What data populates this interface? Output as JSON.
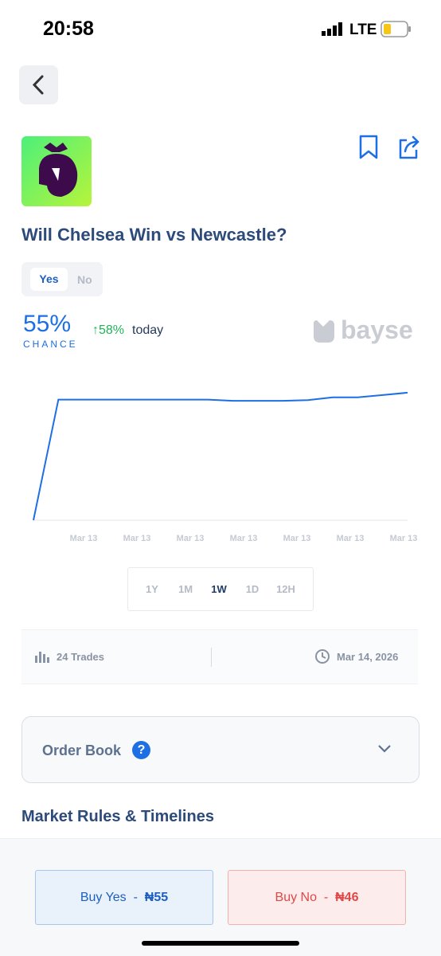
{
  "status_bar": {
    "time": "20:58",
    "network": "LTE"
  },
  "market": {
    "title": "Will Chelsea Win vs Newcastle?",
    "tabs": [
      "Yes",
      "No"
    ],
    "chance": "55%",
    "chance_label": "CHANCE",
    "change": "↑58%",
    "change_suffix": "today",
    "brand": "bayse"
  },
  "chart_data": {
    "type": "line",
    "x_labels": [
      "Mar 13",
      "Mar 13",
      "Mar 13",
      "Mar 13",
      "Mar 13",
      "Mar 13",
      "Mar 13"
    ],
    "values": [
      0,
      52,
      52,
      52,
      52,
      52,
      52,
      52,
      51.5,
      51.5,
      51.5,
      51.8,
      53,
      53,
      54,
      55
    ],
    "color": "#1d6fe3",
    "ylim": [
      0,
      56
    ]
  },
  "ranges": [
    "1Y",
    "1M",
    "1W",
    "1D",
    "12H"
  ],
  "stats": {
    "trades": "24 Trades",
    "date": "Mar 14, 2026"
  },
  "order_book": {
    "title": "Order Book",
    "icon": "?"
  },
  "section_title": "Market Rules & Timelines",
  "buttons": {
    "separator": "-",
    "yes": {
      "label": "Buy Yes",
      "price": "₦55"
    },
    "no": {
      "label": "Buy No",
      "price": "₦46"
    }
  }
}
